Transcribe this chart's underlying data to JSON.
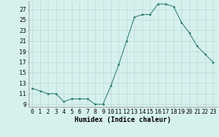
{
  "x": [
    0,
    1,
    2,
    3,
    4,
    5,
    6,
    7,
    8,
    9,
    10,
    11,
    12,
    13,
    14,
    15,
    16,
    17,
    18,
    19,
    20,
    21,
    22,
    23
  ],
  "y": [
    12,
    11.5,
    11,
    11,
    9.5,
    10,
    10,
    10,
    9,
    9,
    12.5,
    16.5,
    21,
    25.5,
    26,
    26,
    28,
    28,
    27.5,
    24.5,
    22.5,
    20,
    18.5,
    17
  ],
  "line_color": "#2e7d6e",
  "marker_color": "#2e7d6e",
  "bg_color": "#d6f0ee",
  "grid_color": "#b8d8d4",
  "xlabel": "Humidex (Indice chaleur)",
  "xlim": [
    -0.5,
    23.5
  ],
  "ylim": [
    8.5,
    28.5
  ],
  "yticks": [
    9,
    11,
    13,
    15,
    17,
    19,
    21,
    23,
    25,
    27
  ],
  "xtick_labels": [
    "0",
    "1",
    "2",
    "3",
    "4",
    "5",
    "6",
    "7",
    "8",
    "9",
    "10",
    "11",
    "12",
    "13",
    "14",
    "15",
    "16",
    "17",
    "18",
    "19",
    "20",
    "21",
    "22",
    "23"
  ],
  "font_size": 6.0,
  "xlabel_font_size": 7.0
}
